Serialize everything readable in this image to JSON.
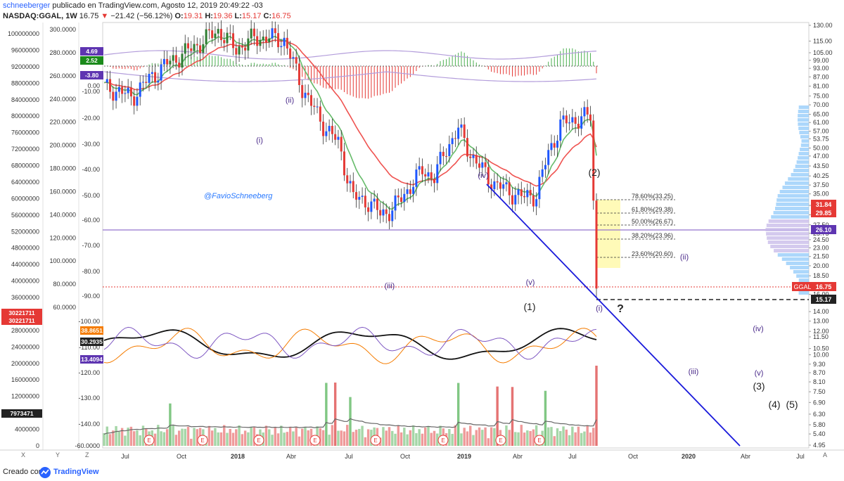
{
  "header": {
    "author": "schneeberger",
    "published_text": " publicado en TradingView.com, Agosto 12, 2019 20:49:22 -03",
    "symbol": "NASDAQ:GGAL, 1W",
    "last": "16.75",
    "change": "−21.42 (−56.12%)",
    "open_label": "O:",
    "open": "19.31",
    "high_label": "H:",
    "high": "19.36",
    "low_label": "L:",
    "low": "15.17",
    "close_label": "C:",
    "close": "16.75"
  },
  "footer": {
    "created_text": "Creado con",
    "brand": "TradingView"
  },
  "corner_buttons": {
    "x": "X",
    "y": "Y",
    "z": "Z",
    "a": "A"
  },
  "chart_data": {
    "type": "candlestick",
    "symbol": "NASDAQ:GGAL",
    "interval": "1W",
    "price_axis": {
      "ticks": [
        "130.00",
        "115.00",
        "105.00",
        "99.00",
        "93.00",
        "87.00",
        "81.00",
        "75.00",
        "70.00",
        "65.00",
        "61.00",
        "57.00",
        "53.75",
        "50.00",
        "47.00",
        "43.50",
        "40.25",
        "37.50",
        "35.00",
        "32.00",
        "29.75",
        "27.50",
        "25.75",
        "24.50",
        "23.00",
        "21.50",
        "20.00",
        "18.50",
        "17.25",
        "16.00",
        "14.00",
        "13.00",
        "12.00",
        "11.50",
        "10.50",
        "10.00",
        "9.30",
        "8.70",
        "8.10",
        "7.50",
        "6.90",
        "6.30",
        "5.80",
        "5.40",
        "4.95"
      ],
      "scale": "log"
    },
    "left_axes": {
      "volume_ticks": [
        "100000000",
        "96000000",
        "92000000",
        "88000000",
        "84000000",
        "80000000",
        "76000000",
        "72000000",
        "68000000",
        "64000000",
        "60000000",
        "56000000",
        "52000000",
        "48000000",
        "44000000",
        "40000000",
        "36000000",
        "32000000",
        "28000000",
        "24000000",
        "20000000",
        "16000000",
        "12000000",
        "8000000",
        "4000000",
        "0"
      ],
      "osc_ticks": [
        "300.0000",
        "280.0000",
        "260.0000",
        "240.0000",
        "220.0000",
        "200.0000",
        "180.0000",
        "160.0000",
        "140.0000",
        "120.0000",
        "100.0000",
        "80.0000",
        "60.0000"
      ],
      "dmi_ticks": [
        "0.00",
        "-10.00",
        "-20.00",
        "-30.00",
        "-40.00",
        "-50.00",
        "-60.00",
        "-70.00",
        "-80.00",
        "-90.00",
        "-100.00",
        "-110.00",
        "-120.00",
        "-130.00",
        "-140.00",
        "-60.0000"
      ]
    },
    "time_axis": [
      "Jul",
      "Oct",
      "2018",
      "Abr",
      "Jul",
      "Oct",
      "2019",
      "Abr",
      "Jul",
      "Oct",
      "2020",
      "Abr",
      "Jul"
    ],
    "price_badges": [
      {
        "value": "31.84",
        "color": "#e53935"
      },
      {
        "value": "29.85",
        "color": "#e53935"
      },
      {
        "value": "26.10",
        "color": "#5e35b1"
      },
      {
        "value": "16.75",
        "color": "#e53935",
        "label": "GGAL"
      },
      {
        "value": "15.17",
        "color": "#222222"
      }
    ],
    "left_badges": [
      {
        "value": "4.69",
        "color": "#5e35b1"
      },
      {
        "value": "2.52",
        "color": "#1b8a1b"
      },
      {
        "value": "-3.80",
        "color": "#5e35b1"
      },
      {
        "value": "30221711",
        "color": "#e53935"
      },
      {
        "value": "30221711",
        "color": "#e53935"
      },
      {
        "value": "38.8651",
        "color": "#f57c00"
      },
      {
        "value": "30.2935",
        "color": "#222222"
      },
      {
        "value": "13.4094",
        "color": "#5e35b1"
      },
      {
        "value": "7973471",
        "color": "#222222"
      }
    ],
    "fibonacci": [
      {
        "label": "78.60%(33.25)"
      },
      {
        "label": "61.80%(29.38)"
      },
      {
        "label": "50.00%(26.67)"
      },
      {
        "label": "38.20%(23.96)"
      },
      {
        "label": "23.60%(20.60)"
      }
    ],
    "wave_labels": [
      {
        "text": "(ii)",
        "color": "#4a2a8a"
      },
      {
        "text": "(i)",
        "color": "#4a2a8a"
      },
      {
        "text": "(iii)",
        "color": "#4a2a8a"
      },
      {
        "text": "(iv)",
        "color": "#4a2a8a"
      },
      {
        "text": "(v)",
        "color": "#4a2a8a"
      },
      {
        "text": "(2)",
        "color": "#222222"
      },
      {
        "text": "(1)",
        "color": "#222222"
      },
      {
        "text": "(i)",
        "color": "#4a2a8a"
      },
      {
        "text": "?",
        "color": "#222222"
      },
      {
        "text": "(ii)",
        "color": "#4a2a8a"
      },
      {
        "text": "(iv)",
        "color": "#4a2a8a"
      },
      {
        "text": "(iii)",
        "color": "#4a2a8a"
      },
      {
        "text": "(v)",
        "color": "#4a2a8a"
      },
      {
        "text": "(3)",
        "color": "#222222"
      },
      {
        "text": "(4)",
        "color": "#222222"
      },
      {
        "text": "(5)",
        "color": "#222222"
      }
    ],
    "watermark": "@FavioSchneeberg",
    "earnings_marker": "E",
    "colors": {
      "up": "#1e56ff",
      "down": "#e53935",
      "ema_fast": "#4caf50",
      "ema_slow": "#e53935",
      "trendline": "#1a1adb",
      "fib_zone": "#fff9b0"
    }
  }
}
